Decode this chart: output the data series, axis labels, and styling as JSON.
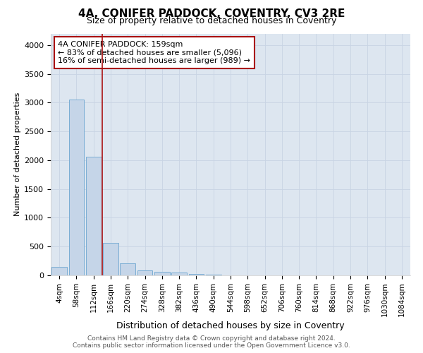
{
  "title": "4A, CONIFER PADDOCK, COVENTRY, CV3 2RE",
  "subtitle": "Size of property relative to detached houses in Coventry",
  "xlabel": "Distribution of detached houses by size in Coventry",
  "ylabel": "Number of detached properties",
  "footer_line1": "Contains HM Land Registry data © Crown copyright and database right 2024.",
  "footer_line2": "Contains public sector information licensed under the Open Government Licence v3.0.",
  "bin_labels": [
    "4sqm",
    "58sqm",
    "112sqm",
    "166sqm",
    "220sqm",
    "274sqm",
    "328sqm",
    "382sqm",
    "436sqm",
    "490sqm",
    "544sqm",
    "598sqm",
    "652sqm",
    "706sqm",
    "760sqm",
    "814sqm",
    "868sqm",
    "922sqm",
    "976sqm",
    "1030sqm",
    "1084sqm"
  ],
  "bar_values": [
    145,
    3050,
    2060,
    560,
    205,
    82,
    62,
    45,
    30,
    10,
    0,
    0,
    0,
    0,
    0,
    0,
    0,
    0,
    0,
    0,
    0
  ],
  "bar_color": "#c5d5e8",
  "bar_edge_color": "#7aadd4",
  "grid_color": "#c8d4e4",
  "background_color": "#dde6f0",
  "vline_x": 2.5,
  "vline_color": "#aa1111",
  "annotation_line1": "4A CONIFER PADDOCK: 159sqm",
  "annotation_line2": "← 83% of detached houses are smaller (5,096)",
  "annotation_line3": "16% of semi-detached houses are larger (989) →",
  "annotation_box_color": "#aa1111",
  "ylim": [
    0,
    4200
  ],
  "yticks": [
    0,
    500,
    1000,
    1500,
    2000,
    2500,
    3000,
    3500,
    4000
  ],
  "title_fontsize": 11,
  "subtitle_fontsize": 9,
  "ylabel_fontsize": 8,
  "xlabel_fontsize": 9,
  "tick_fontsize": 7.5,
  "ytick_fontsize": 8,
  "footer_fontsize": 6.5
}
